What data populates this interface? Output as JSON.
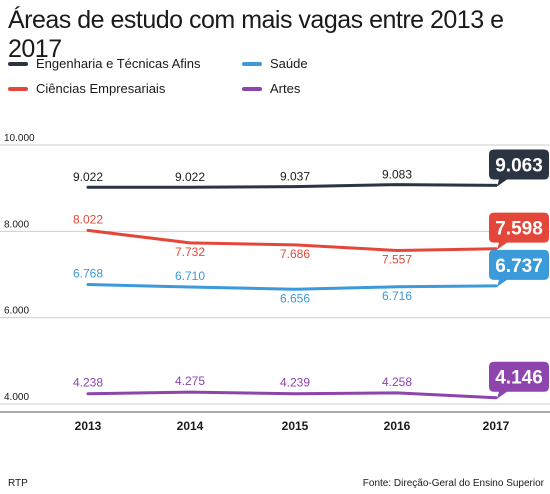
{
  "title": "Áreas de estudo com mais vagas entre 2013 e 2017",
  "source": "Fonte: Direção-Geral do Ensino Superior",
  "credit": "RTP",
  "colors": {
    "grid": "#cfcfcf",
    "axis": "#555555"
  },
  "chart_data": {
    "type": "line",
    "x": [
      "2013",
      "2014",
      "2015",
      "2016",
      "2017"
    ],
    "ylim": [
      4000,
      10000
    ],
    "yticks": [
      {
        "value": 4000,
        "label": "4.000"
      },
      {
        "value": 6000,
        "label": "6.000"
      },
      {
        "value": 8000,
        "label": "8.000"
      },
      {
        "value": 10000,
        "label": "10.000"
      }
    ],
    "grid": true,
    "legend_position": "top",
    "series": [
      {
        "name": "Engenharia e Técnicas Afins",
        "color": "#2b3442",
        "values": [
          9022,
          9022,
          9037,
          9083,
          9063
        ],
        "labels": [
          "9.022",
          "9.022",
          "9.037",
          "9.083",
          "9.063"
        ]
      },
      {
        "name": "Ciências Empresariais",
        "color": "#e4473a",
        "values": [
          8022,
          7732,
          7686,
          7557,
          7598
        ],
        "labels": [
          "8.022",
          "7.732",
          "7.686",
          "7.557",
          "7.598"
        ]
      },
      {
        "name": "Saúde",
        "color": "#3b9ad9",
        "values": [
          6768,
          6710,
          6656,
          6716,
          6737
        ],
        "labels": [
          "6.768",
          "6.710",
          "6.656",
          "6.716",
          "6.737"
        ]
      },
      {
        "name": "Artes",
        "color": "#8e44ad",
        "values": [
          4238,
          4275,
          4239,
          4258,
          4146
        ],
        "labels": [
          "4.238",
          "4.275",
          "4.239",
          "4.258",
          "4.146"
        ]
      }
    ]
  }
}
